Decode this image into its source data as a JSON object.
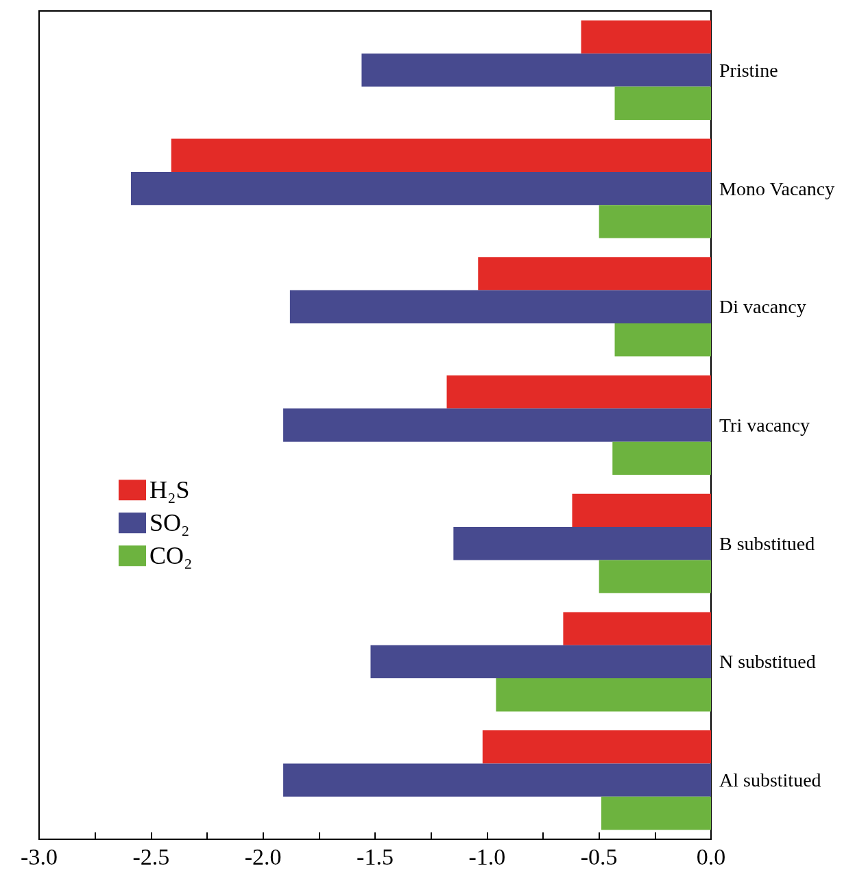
{
  "chart_data": {
    "type": "bar",
    "orientation": "horizontal",
    "categories": [
      "Pristine",
      "Mono Vacancy",
      "Di vacancy",
      "Tri vacancy",
      "B substitued",
      "N substitued",
      "Al substitued"
    ],
    "series": [
      {
        "name": "H₂S",
        "color": "#e32b27",
        "values": [
          -0.58,
          -2.41,
          -1.04,
          -1.18,
          -0.62,
          -0.66,
          -1.02
        ]
      },
      {
        "name": "SO₂",
        "color": "#474a8f",
        "values": [
          -1.56,
          -2.59,
          -1.88,
          -1.91,
          -1.15,
          -1.52,
          -1.91
        ]
      },
      {
        "name": "CO₂",
        "color": "#6db33f",
        "values": [
          -0.43,
          -0.5,
          -0.43,
          -0.44,
          -0.5,
          -0.96,
          -0.49
        ]
      }
    ],
    "xlim": [
      -3,
      0
    ],
    "xticks": [
      {
        "value": -3,
        "label": "-3.0"
      },
      {
        "value": -2.75,
        "label": null
      },
      {
        "value": -2.5,
        "label": "-2.5"
      },
      {
        "value": -2.25,
        "label": null
      },
      {
        "value": -2,
        "label": "-2.0"
      },
      {
        "value": -1.75,
        "label": null
      },
      {
        "value": -1.5,
        "label": "-1.5"
      },
      {
        "value": -1.25,
        "label": null
      },
      {
        "value": -1,
        "label": "-1.0"
      },
      {
        "value": -0.75,
        "label": null
      },
      {
        "value": -0.5,
        "label": "-0.5"
      },
      {
        "value": -0.25,
        "label": null
      },
      {
        "value": 0,
        "label": "0.0"
      }
    ],
    "grid": false,
    "legend": "left"
  }
}
